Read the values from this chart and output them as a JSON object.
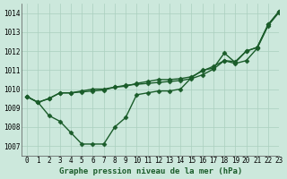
{
  "xlabel": "Graphe pression niveau de la mer (hPa)",
  "xlim": [
    -0.5,
    23
  ],
  "ylim": [
    1006.5,
    1014.5
  ],
  "yticks": [
    1007,
    1008,
    1009,
    1010,
    1011,
    1012,
    1013,
    1014
  ],
  "xticks": [
    0,
    1,
    2,
    3,
    4,
    5,
    6,
    7,
    8,
    9,
    10,
    11,
    12,
    13,
    14,
    15,
    16,
    17,
    18,
    19,
    20,
    21,
    22,
    23
  ],
  "bg_color": "#cce8dc",
  "grid_color": "#aacfbe",
  "line_color": "#1a5c2a",
  "series1": [
    1009.6,
    1009.3,
    1008.6,
    1008.3,
    1007.7,
    1007.1,
    1007.1,
    1007.1,
    1008.0,
    1008.5,
    1009.7,
    1009.8,
    1009.9,
    1009.9,
    1010.0,
    1010.6,
    1011.0,
    1011.1,
    1011.9,
    1011.4,
    1012.0,
    1012.2,
    1013.4,
    1014.1
  ],
  "series2": [
    1009.6,
    1009.3,
    1009.5,
    1009.8,
    1009.8,
    1009.85,
    1009.9,
    1009.95,
    1010.1,
    1010.2,
    1010.25,
    1010.3,
    1010.35,
    1010.4,
    1010.45,
    1010.55,
    1010.75,
    1011.05,
    1011.5,
    1011.45,
    1012.0,
    1012.2,
    1013.4,
    1014.1
  ],
  "series3": [
    1009.6,
    1009.3,
    1009.5,
    1009.8,
    1009.8,
    1009.9,
    1010.0,
    1010.0,
    1010.1,
    1010.15,
    1010.3,
    1010.4,
    1010.5,
    1010.5,
    1010.55,
    1010.65,
    1010.95,
    1011.2,
    1011.5,
    1011.35,
    1011.5,
    1012.15,
    1013.35,
    1014.05
  ],
  "marker": "D",
  "markersize": 2.5,
  "linewidth": 1.0,
  "tick_fontsize": 5.5,
  "label_fontsize": 6.5,
  "font_family": "monospace"
}
